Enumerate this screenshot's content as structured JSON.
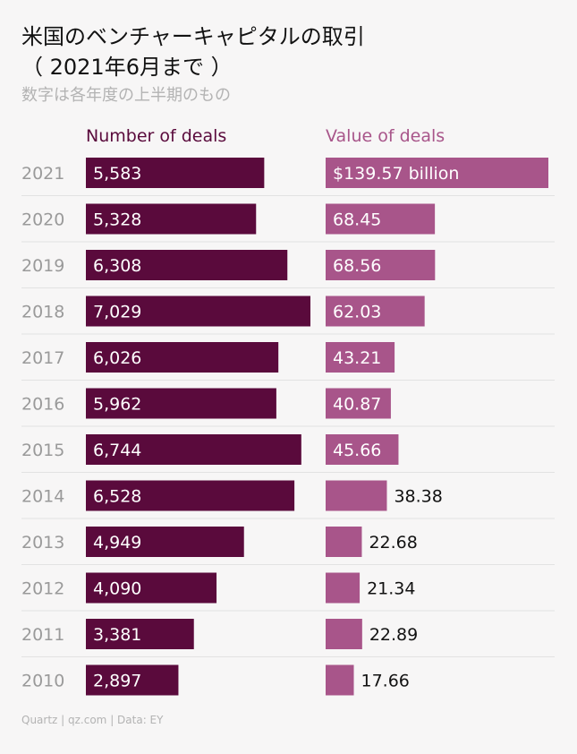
{
  "title_line1": "米国のベンチャーキャピタルの取引",
  "title_line2": "（ 2021年6月まで ）",
  "subtitle": "数字は各年度の上半期のもの",
  "source": "Quartz | qz.com | Data: EY",
  "colors": {
    "deals": "#5a0a3c",
    "value": "#a8558a",
    "year_label": "#9a9a9a",
    "grid": "#e2e2e2"
  },
  "chart_data": {
    "type": "bar",
    "categories": [
      "2021",
      "2020",
      "2019",
      "2018",
      "2017",
      "2016",
      "2015",
      "2014",
      "2013",
      "2012",
      "2011",
      "2010"
    ],
    "series": [
      {
        "name": "Number of deals",
        "values": [
          5583,
          5328,
          6308,
          7029,
          6026,
          5962,
          6744,
          6528,
          4949,
          4090,
          3381,
          2897
        ],
        "labels": [
          "5,583",
          "5,328",
          "6,308",
          "7,029",
          "6,026",
          "5,962",
          "6,744",
          "6,528",
          "4,949",
          "4,090",
          "3,381",
          "2,897"
        ],
        "xlim": [
          0,
          7029
        ]
      },
      {
        "name": "Value of deals",
        "values": [
          139.57,
          68.45,
          68.56,
          62.03,
          43.21,
          40.87,
          45.66,
          38.38,
          22.68,
          21.34,
          22.89,
          17.66
        ],
        "labels": [
          "$139.57 billion",
          "68.45",
          "68.56",
          "62.03",
          "43.21",
          "40.87",
          "45.66",
          "38.38",
          "22.68",
          "21.34",
          "22.89",
          "17.66"
        ],
        "xlim": [
          0,
          139.57
        ]
      }
    ]
  }
}
